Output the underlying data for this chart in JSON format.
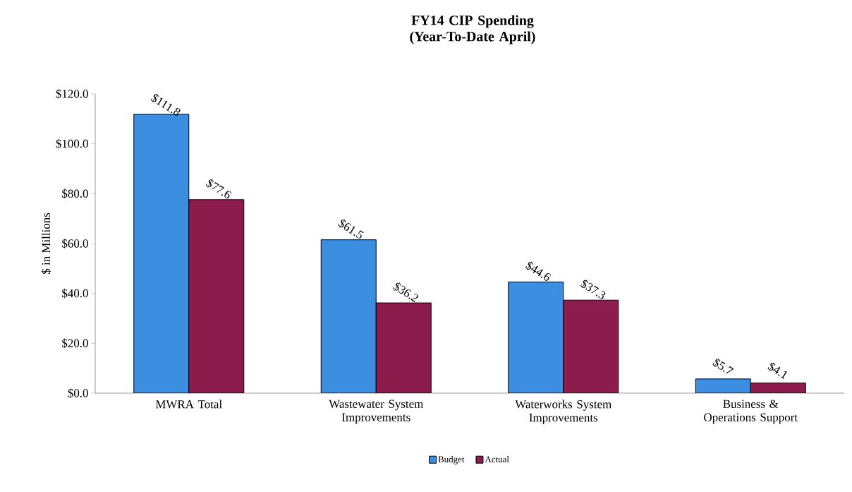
{
  "chart_data": {
    "type": "bar",
    "title": "FY14 CIP Spending\n(Year-To-Date April)",
    "ylabel": "$ in Millions",
    "categories": [
      "MWRA Total",
      "Wastewater System Improvements",
      "Waterworks System Improvements",
      "Business & Operations Support"
    ],
    "series": [
      {
        "name": "Budget",
        "color": "#3b8ee0",
        "values": [
          111.8,
          61.5,
          44.6,
          5.7
        ],
        "value_labels": [
          "$111.8",
          "$61.5",
          "$44.6",
          "$5.7"
        ]
      },
      {
        "name": "Actual",
        "color": "#8c1c4c",
        "values": [
          77.6,
          36.2,
          37.3,
          4.1
        ],
        "value_labels": [
          "$77.6",
          "$36.2",
          "$37.3",
          "$4.1"
        ]
      }
    ],
    "ylim": [
      0,
      120
    ],
    "yticks": [
      {
        "value": 0,
        "label": "$0.0"
      },
      {
        "value": 20,
        "label": "$20.0"
      },
      {
        "value": 40,
        "label": "$40.0"
      },
      {
        "value": 60,
        "label": "$60.0"
      },
      {
        "value": 80,
        "label": "$80.0"
      },
      {
        "value": 100,
        "label": "$100.0"
      },
      {
        "value": 120,
        "label": "$120.0"
      }
    ],
    "legend": "bottom",
    "grid": false
  }
}
